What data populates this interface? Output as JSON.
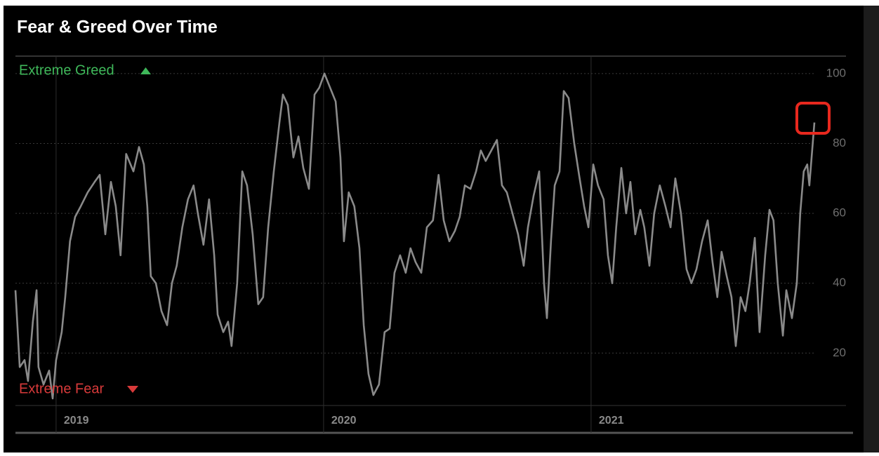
{
  "chart_data": {
    "type": "line",
    "title": "Fear & Greed Over Time",
    "annotations": {
      "top": "Extreme Greed",
      "bottom": "Extreme Fear"
    },
    "x": [
      2018.848,
      2018.864,
      2018.882,
      2018.895,
      2018.913,
      2018.927,
      2018.934,
      2018.953,
      2018.974,
      2018.987,
      2019.0,
      2019.021,
      2019.034,
      2019.052,
      2019.071,
      2019.092,
      2019.118,
      2019.144,
      2019.163,
      2019.184,
      2019.205,
      2019.223,
      2019.241,
      2019.262,
      2019.289,
      2019.31,
      2019.328,
      2019.341,
      2019.354,
      2019.373,
      2019.394,
      2019.415,
      2019.433,
      2019.451,
      2019.472,
      2019.493,
      2019.514,
      2019.53,
      2019.551,
      2019.572,
      2019.591,
      2019.604,
      2019.625,
      2019.643,
      2019.656,
      2019.677,
      2019.696,
      2019.714,
      2019.735,
      2019.756,
      2019.774,
      2019.793,
      2019.814,
      2019.835,
      2019.848,
      2019.866,
      2019.887,
      2019.906,
      2019.924,
      2019.945,
      2019.966,
      2019.984,
      2020.003,
      2020.024,
      2020.045,
      2020.063,
      2020.076,
      2020.094,
      2020.115,
      2020.134,
      2020.15,
      2020.168,
      2020.186,
      2020.207,
      2020.228,
      2020.247,
      2020.265,
      2020.286,
      2020.307,
      2020.325,
      2020.344,
      2020.365,
      2020.386,
      2020.409,
      2020.43,
      2020.449,
      2020.47,
      2020.491,
      2020.509,
      2020.528,
      2020.549,
      2020.57,
      2020.588,
      2020.606,
      2020.627,
      2020.648,
      2020.667,
      2020.685,
      2020.706,
      2020.727,
      2020.748,
      2020.764,
      2020.785,
      2020.806,
      2020.824,
      2020.835,
      2020.85,
      2020.864,
      2020.882,
      2020.898,
      2020.916,
      2020.937,
      2020.955,
      2020.974,
      2020.99,
      2021.008,
      2021.026,
      2021.047,
      2021.063,
      2021.079,
      2021.094,
      2021.113,
      2021.131,
      2021.147,
      2021.165,
      2021.184,
      2021.199,
      2021.218,
      2021.236,
      2021.257,
      2021.278,
      2021.297,
      2021.315,
      2021.336,
      2021.357,
      2021.375,
      2021.394,
      2021.415,
      2021.436,
      2021.454,
      2021.472,
      2021.488,
      2021.507,
      2021.525,
      2021.541,
      2021.559,
      2021.577,
      2021.593,
      2021.612,
      2021.63,
      2021.651,
      2021.667,
      2021.682,
      2021.698,
      2021.717,
      2021.73,
      2021.751,
      2021.769,
      2021.782,
      2021.795,
      2021.808,
      2021.816,
      2021.835
    ],
    "series": [
      {
        "color": "#8a8a8a",
        "values": [
          38,
          16,
          18,
          12,
          29,
          38,
          16,
          11,
          15,
          7,
          18,
          26,
          36,
          52,
          59,
          62,
          66,
          69,
          71,
          54,
          69,
          62,
          48,
          77,
          72,
          79,
          74,
          62,
          42,
          40,
          32,
          28,
          40,
          45,
          56,
          64,
          68,
          60,
          51,
          64,
          48,
          31,
          26,
          29,
          22,
          40,
          72,
          68,
          54,
          34,
          36,
          56,
          72,
          86,
          94,
          91,
          76,
          82,
          73,
          67,
          94,
          96,
          100,
          96,
          92,
          76,
          52,
          66,
          62,
          50,
          28,
          14,
          8,
          11,
          26,
          27,
          43,
          48,
          43,
          50,
          46,
          43,
          56,
          58,
          71,
          58,
          52,
          55,
          59,
          68,
          67,
          72,
          78,
          75,
          78,
          81,
          68,
          66,
          60,
          54,
          45,
          56,
          65,
          72,
          40,
          30,
          52,
          68,
          72,
          95,
          93,
          80,
          71,
          62,
          56,
          74,
          68,
          64,
          48,
          40,
          56,
          73,
          60,
          69,
          54,
          61,
          56,
          45,
          60,
          68,
          62,
          56,
          70,
          60,
          44,
          40,
          44,
          52,
          58,
          46,
          36,
          49,
          42,
          36,
          22,
          36,
          32,
          40,
          53,
          26,
          48,
          61,
          58,
          40,
          25,
          38,
          30,
          40,
          60,
          72,
          74,
          68,
          86
        ]
      }
    ],
    "xlim": [
      2018.848,
      2021.953
    ],
    "xticks": [
      2019,
      2020,
      2021
    ],
    "ylim": [
      5,
      105
    ],
    "yticks": [
      20,
      40,
      60,
      80,
      100
    ],
    "grid": true
  }
}
